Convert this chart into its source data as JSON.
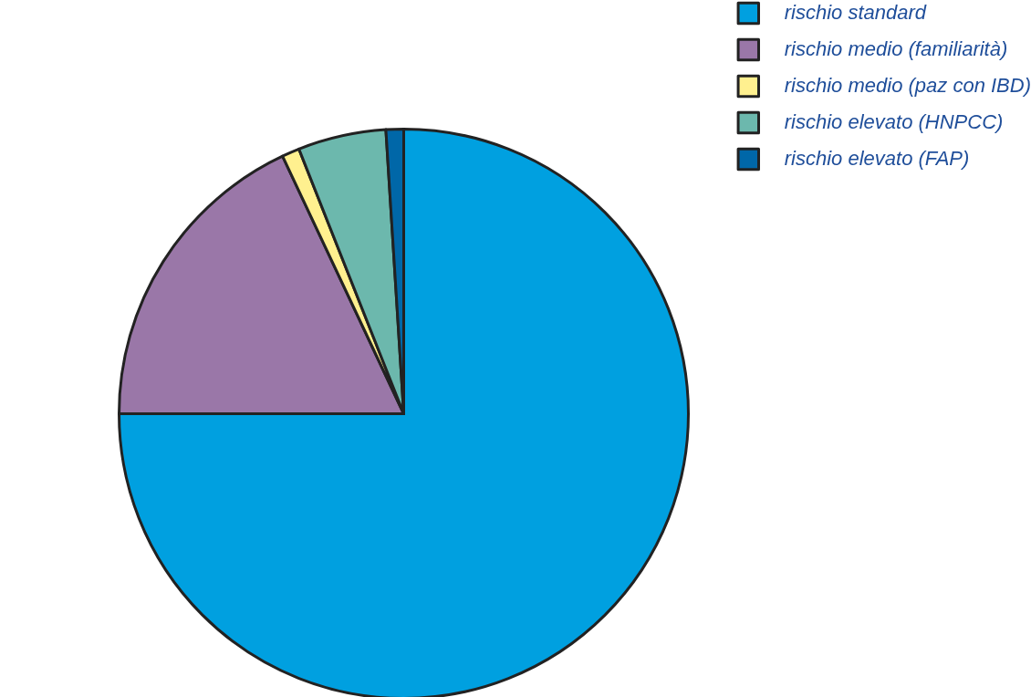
{
  "chart_data": {
    "type": "pie",
    "categories": [
      "rischio standard",
      "rischio medio (familiarità)",
      "rischio medio (paz con IBD)",
      "rischio elevato (HNPCC)",
      "rischio elevato (FAP)"
    ],
    "values": [
      75,
      18,
      1,
      5,
      1
    ],
    "colors": [
      "#00a0e0",
      "#9a77a8",
      "#fff08f",
      "#6cb8ad",
      "#0067a8"
    ],
    "legend": "top right"
  }
}
